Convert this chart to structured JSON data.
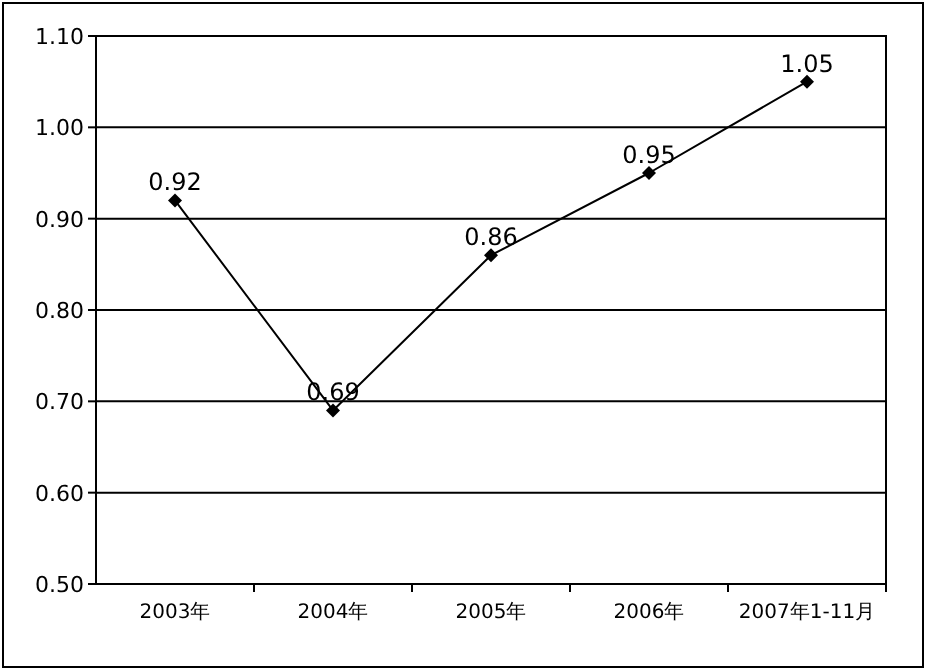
{
  "chart_data": {
    "type": "line",
    "categories": [
      "2003年",
      "2004年",
      "2005年",
      "2006年",
      "2007年1-11月"
    ],
    "series": [
      {
        "color": "#000000",
        "values": [
          0.92,
          0.69,
          0.86,
          0.95,
          1.05
        ]
      }
    ],
    "ylim": [
      0.5,
      1.1
    ],
    "yticks": [
      {
        "value": 0.5,
        "label": "0.50"
      },
      {
        "value": 0.6,
        "label": "0.60"
      },
      {
        "value": 0.7,
        "label": "0.70"
      },
      {
        "value": 0.8,
        "label": "0.80"
      },
      {
        "value": 0.9,
        "label": "0.90"
      },
      {
        "value": 1.0,
        "label": "1.00"
      },
      {
        "value": 1.1,
        "label": "1.10"
      }
    ],
    "grid": "y",
    "marker": "diamond",
    "line_style": "solid",
    "data_labels": true
  }
}
